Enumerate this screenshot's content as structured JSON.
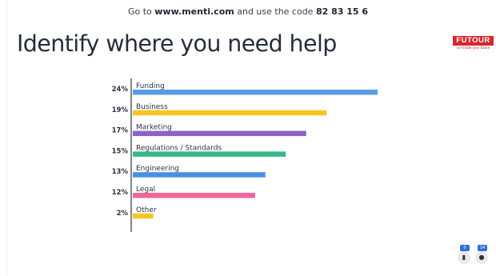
{
  "header": {
    "prefix": "Go to",
    "site": "www.menti.com",
    "middle": "and use the code",
    "code": "82 83 15 6"
  },
  "slide": {
    "title": "Identify where you need help"
  },
  "logo": {
    "name": "FUTOUR",
    "tagline": "co-create your future"
  },
  "chart_data": {
    "type": "bar",
    "orientation": "horizontal",
    "categories": [
      "Funding",
      "Business",
      "Marketing",
      "Regulations / Standards",
      "Engineering",
      "Legal",
      "Other"
    ],
    "values": [
      24,
      19,
      17,
      15,
      13,
      12,
      2
    ],
    "value_labels": [
      "24%",
      "19%",
      "17%",
      "15%",
      "13%",
      "12%",
      "2%"
    ],
    "colors": [
      "#5b9be6",
      "#f5c524",
      "#8a63c7",
      "#35b883",
      "#4a90e2",
      "#f0659a",
      "#f5c524"
    ],
    "title": "",
    "xlabel": "",
    "ylabel": "",
    "grid": false,
    "legend": "none"
  },
  "footer": {
    "comments_count": "0",
    "participants_count": "14"
  }
}
